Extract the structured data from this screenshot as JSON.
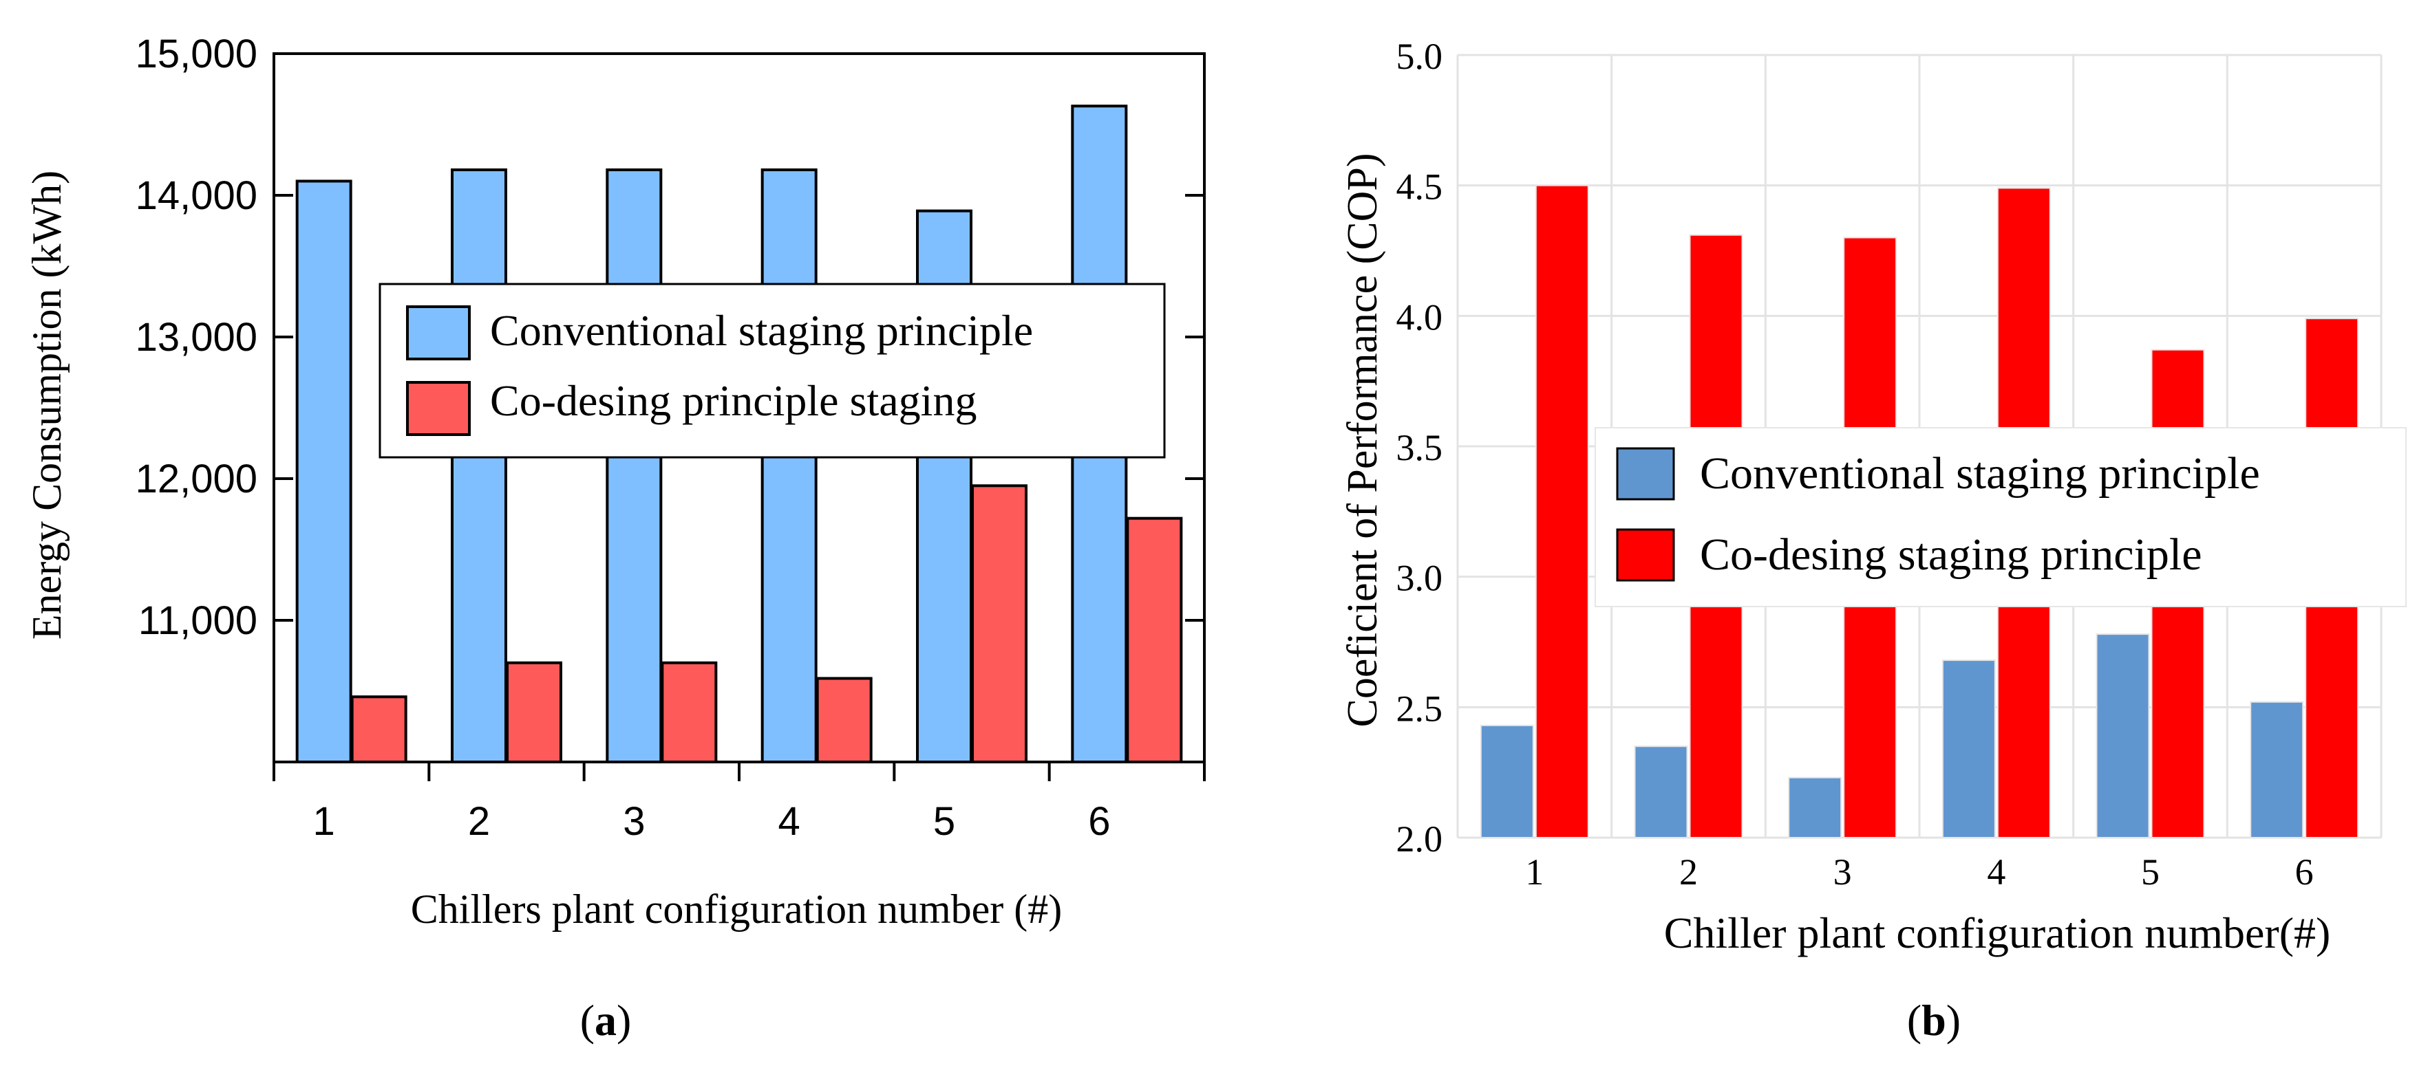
{
  "chart_data": [
    {
      "id": "a",
      "panel_label": "(a)",
      "panel_letter": "a",
      "type": "bar",
      "title": "",
      "xlabel": "Chillers plant configuration number (#)",
      "ylabel": "Energy Consumption (kWh)",
      "ylim": [
        10000,
        15000
      ],
      "yticks": [
        11000,
        12000,
        13000,
        14000,
        15000
      ],
      "ytick_labels": [
        "11,000",
        "12,000",
        "13,000",
        "14,000",
        "15,000"
      ],
      "categories": [
        "1",
        "2",
        "3",
        "4",
        "5",
        "6"
      ],
      "grid": false,
      "legend_position": "center-right",
      "series": [
        {
          "name": "Conventional staging principle",
          "color": "#80BFFF",
          "values": [
            14100,
            14180,
            14180,
            14180,
            13890,
            14630
          ]
        },
        {
          "name": "Co-desing principle staging",
          "color": "#FF5A5A",
          "values": [
            10460,
            10700,
            10700,
            10590,
            11950,
            11720
          ]
        }
      ]
    },
    {
      "id": "b",
      "panel_label": "(b)",
      "panel_letter": "b",
      "type": "bar",
      "title": "",
      "xlabel": "Chiller plant configuration number(#)",
      "ylabel": "Coeficient of Performance (COP)",
      "ylim": [
        2.0,
        5.0
      ],
      "yticks": [
        2.0,
        2.5,
        3.0,
        3.5,
        4.0,
        4.5,
        5.0
      ],
      "ytick_labels": [
        "2.0",
        "2.5",
        "3.0",
        "3.5",
        "4.0",
        "4.5",
        "5.0"
      ],
      "categories": [
        "1",
        "2",
        "3",
        "4",
        "5",
        "6"
      ],
      "grid": true,
      "legend_position": "center-right",
      "series": [
        {
          "name": "Conventional staging principle",
          "color": "#6096D0",
          "values": [
            2.43,
            2.35,
            2.23,
            2.68,
            2.78,
            2.52
          ]
        },
        {
          "name": "Co-desing staging principle",
          "color": "#FF0000",
          "values": [
            4.5,
            4.31,
            4.3,
            4.49,
            3.87,
            3.99
          ]
        }
      ]
    }
  ]
}
